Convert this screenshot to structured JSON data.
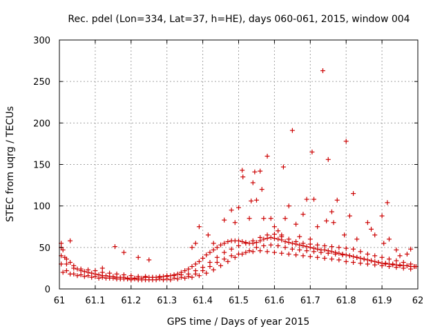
{
  "chart_data": {
    "type": "scatter",
    "title": "Rec. pdel (Lon=334, Lat=37, h=HE), days 060-061, 2015, window 004",
    "xlabel": "GPS time / Days of year 2015",
    "ylabel": "STEC from uqrg / TECUs",
    "xlim": [
      61,
      62
    ],
    "ylim": [
      0,
      300
    ],
    "xticks": [
      "61",
      "61.1",
      "61.2",
      "61.3",
      "61.4",
      "61.5",
      "61.6",
      "61.7",
      "61.8",
      "61.9",
      "62"
    ],
    "yticks": [
      "0",
      "50",
      "100",
      "150",
      "200",
      "250",
      "300"
    ],
    "grid": true,
    "marker": "+",
    "color": "#cc0000",
    "series": [
      {
        "name": "STEC",
        "x": [
          61.005,
          61.01,
          61.015,
          61.02,
          61.03,
          61.04,
          61.05,
          61.06,
          61.07,
          61.08,
          61.09,
          61.1,
          61.11,
          61.12,
          61.13,
          61.14,
          61.15,
          61.16,
          61.17,
          61.18,
          61.19,
          61.2,
          61.21,
          61.22,
          61.23,
          61.24,
          61.25,
          61.26,
          61.27,
          61.28,
          61.29,
          61.3,
          61.31,
          61.32,
          61.33,
          61.34,
          61.35,
          61.36,
          61.37,
          61.38,
          61.39,
          61.4,
          61.41,
          61.42,
          61.43,
          61.44,
          61.45,
          61.46,
          61.47,
          61.48,
          61.49,
          61.5,
          61.51,
          61.52,
          61.53,
          61.54,
          61.55,
          61.56,
          61.57,
          61.58,
          61.59,
          61.6,
          61.61,
          61.62,
          61.63,
          61.64,
          61.65,
          61.66,
          61.67,
          61.68,
          61.69,
          61.7,
          61.71,
          61.72,
          61.73,
          61.74,
          61.75,
          61.76,
          61.77,
          61.78,
          61.79,
          61.8,
          61.81,
          61.82,
          61.83,
          61.84,
          61.85,
          61.86,
          61.87,
          61.88,
          61.89,
          61.9,
          61.91,
          61.92,
          61.93,
          61.94,
          61.95,
          61.96,
          61.97,
          61.98,
          61.99,
          61.995,
          61.005,
          61.02,
          61.04,
          61.06,
          61.08,
          61.1,
          61.12,
          61.14,
          61.16,
          61.18,
          61.2,
          61.22,
          61.24,
          61.26,
          61.28,
          61.3,
          61.32,
          61.34,
          61.36,
          61.38,
          61.4,
          61.42,
          61.44,
          61.46,
          61.48,
          61.5,
          61.52,
          61.54,
          61.56,
          61.58,
          61.6,
          61.62,
          61.64,
          61.66,
          61.68,
          61.7,
          61.72,
          61.74,
          61.76,
          61.78,
          61.8,
          61.82,
          61.84,
          61.86,
          61.88,
          61.9,
          61.92,
          61.94,
          61.96,
          61.98,
          61.005,
          61.02,
          61.04,
          61.06,
          61.08,
          61.1,
          61.12,
          61.14,
          61.16,
          61.18,
          61.2,
          61.22,
          61.24,
          61.26,
          61.28,
          61.3,
          61.32,
          61.34,
          61.36,
          61.38,
          61.4,
          61.42,
          61.44,
          61.46,
          61.48,
          61.5,
          61.52,
          61.54,
          61.56,
          61.58,
          61.6,
          61.62,
          61.64,
          61.66,
          61.68,
          61.7,
          61.72,
          61.74,
          61.76,
          61.78,
          61.8,
          61.82,
          61.84,
          61.86,
          61.88,
          61.9,
          61.92,
          61.94,
          61.96,
          61.98,
          61.01,
          61.03,
          61.05,
          61.07,
          61.09,
          61.11,
          61.13,
          61.15,
          61.17,
          61.19,
          61.21,
          61.23,
          61.25,
          61.27,
          61.29,
          61.31,
          61.33,
          61.35,
          61.37,
          61.39,
          61.41,
          61.43,
          61.45,
          61.47,
          61.49,
          61.51,
          61.53,
          61.55,
          61.57,
          61.59,
          61.61,
          61.63,
          61.65,
          61.67,
          61.69,
          61.71,
          61.73,
          61.75,
          61.77,
          61.79,
          61.81,
          61.83,
          61.85,
          61.87,
          61.89,
          61.91,
          61.93,
          61.95,
          61.97,
          61.99,
          61.005,
          61.03,
          61.12,
          61.155,
          61.18,
          61.22,
          61.25,
          61.37,
          61.38,
          61.39,
          61.415,
          61.43,
          61.46,
          61.48,
          61.49,
          61.5,
          61.51,
          61.512,
          61.53,
          61.535,
          61.54,
          61.545,
          61.55,
          61.56,
          61.565,
          61.57,
          61.58,
          61.59,
          61.6,
          61.61,
          61.62,
          61.625,
          61.63,
          61.64,
          61.65,
          61.66,
          61.67,
          61.68,
          61.69,
          61.7,
          61.705,
          61.71,
          61.72,
          61.735,
          61.745,
          61.75,
          61.76,
          61.765,
          61.775,
          61.795,
          61.8,
          61.81,
          61.82,
          61.83,
          61.86,
          61.87,
          61.88,
          61.9,
          61.905,
          61.915,
          61.92,
          61.94,
          61.95,
          61.97,
          61.98
        ],
        "y": [
          50,
          47,
          38,
          36,
          32,
          28,
          24,
          22,
          21,
          20,
          19,
          18,
          17,
          16,
          16,
          15,
          15,
          14,
          14,
          14,
          13,
          13,
          13,
          13,
          13,
          14,
          14,
          14,
          14,
          15,
          15,
          16,
          16,
          17,
          18,
          20,
          22,
          24,
          27,
          30,
          33,
          37,
          41,
          44,
          47,
          50,
          53,
          55,
          57,
          58,
          58,
          58,
          57,
          56,
          55,
          55,
          56,
          58,
          60,
          61,
          62,
          61,
          60,
          59,
          57,
          56,
          55,
          54,
          53,
          52,
          51,
          50,
          49,
          48,
          47,
          47,
          46,
          45,
          44,
          43,
          42,
          41,
          40,
          39,
          38,
          37,
          36,
          35,
          34,
          33,
          32,
          31,
          30,
          30,
          29,
          29,
          28,
          28,
          28,
          27,
          27,
          27,
          40,
          30,
          25,
          24,
          23,
          22,
          20,
          19,
          18,
          17,
          16,
          15,
          15,
          14,
          14,
          15,
          16,
          17,
          18,
          22,
          26,
          32,
          38,
          44,
          48,
          52,
          55,
          58,
          62,
          65,
          66,
          63,
          60,
          57,
          55,
          54,
          53,
          52,
          51,
          50,
          49,
          48,
          45,
          42,
          40,
          38,
          36,
          34,
          32,
          30,
          30,
          22,
          18,
          17,
          16,
          15,
          14,
          13,
          12,
          12,
          11,
          11,
          11,
          11,
          12,
          12,
          13,
          14,
          15,
          18,
          22,
          27,
          32,
          36,
          40,
          42,
          44,
          45,
          46,
          45,
          44,
          43,
          42,
          41,
          40,
          39,
          38,
          37,
          36,
          35,
          33,
          32,
          31,
          30,
          29,
          28,
          27,
          26,
          25,
          24,
          20,
          18,
          16,
          15,
          14,
          13,
          13,
          13,
          12,
          12,
          12,
          11,
          11,
          11,
          11,
          11,
          12,
          13,
          14,
          16,
          19,
          23,
          28,
          33,
          38,
          42,
          46,
          50,
          52,
          53,
          52,
          50,
          48,
          47,
          46,
          45,
          44,
          43,
          42,
          41,
          40,
          38,
          36,
          34,
          32,
          31,
          30,
          29,
          28,
          27,
          55,
          58,
          25,
          51,
          44,
          38,
          35,
          50,
          55,
          75,
          65,
          55,
          83,
          95,
          80,
          98,
          143,
          135,
          85,
          106,
          128,
          141,
          107,
          142,
          120,
          85,
          160,
          85,
          75,
          70,
          65,
          147,
          85,
          100,
          191,
          78,
          63,
          90,
          108,
          60,
          165,
          108,
          75,
          263,
          82,
          156,
          93,
          80,
          107,
          65,
          178,
          88,
          115,
          60,
          80,
          72,
          65,
          88,
          55,
          104,
          60,
          47,
          40,
          42,
          48
        ]
      }
    ]
  }
}
